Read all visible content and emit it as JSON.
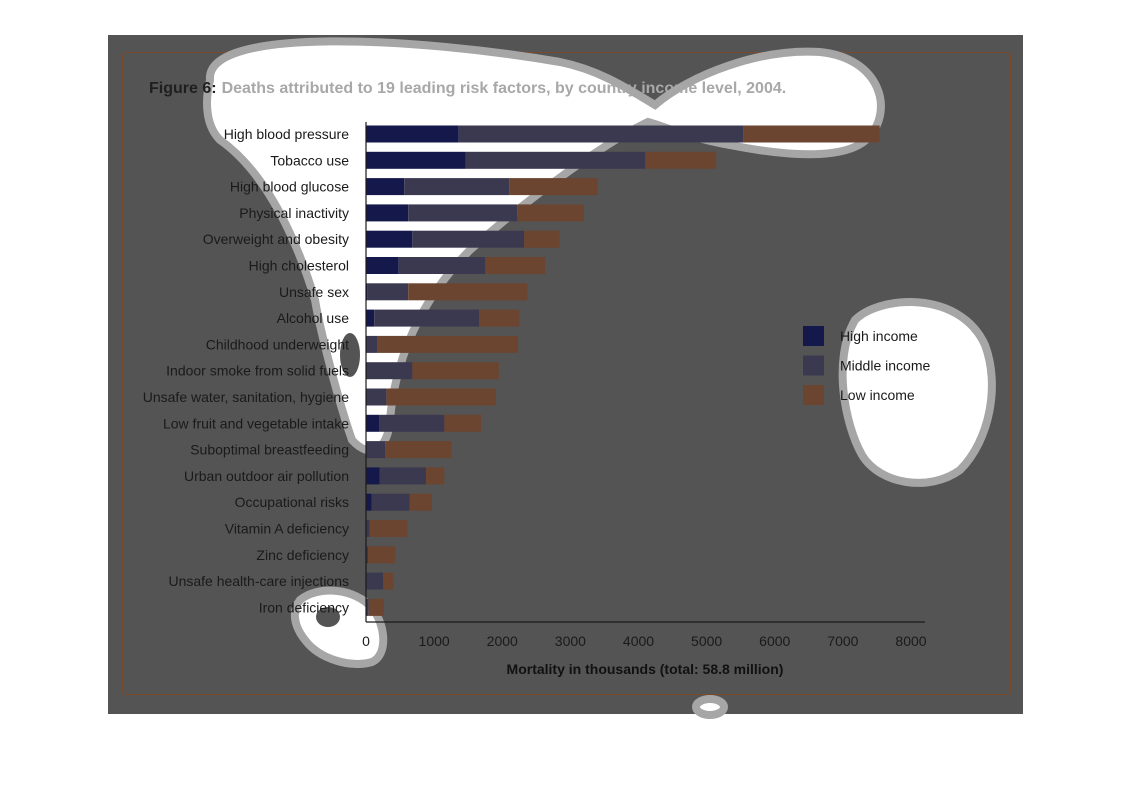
{
  "chart_data": {
    "type": "bar",
    "orientation": "horizontal",
    "stacked": true,
    "title_prefix": "Figure 6:",
    "title": "Deaths attributed to 19 leading risk factors, by country income level, 2004.",
    "xlabel": "Mortality in thousands (total: 58.8 million)",
    "ylabel": "",
    "xlim": [
      0,
      8000
    ],
    "xticks": [
      "0",
      "1000",
      "2000",
      "3000",
      "4000",
      "5000",
      "6000",
      "7000",
      "8000"
    ],
    "grid": false,
    "legend_position": "right",
    "categories": [
      "High blood pressure",
      "Tobacco use",
      "High blood glucose",
      "Physical inactivity",
      "Overweight and obesity",
      "High cholesterol",
      "Unsafe sex",
      "Alcohol use",
      "Childhood underweight",
      "Indoor smoke from solid fuels",
      "Unsafe water, sanitation, hygiene",
      "Low fruit and vegetable intake",
      "Suboptimal breastfeeding",
      "Urban outdoor air pollution",
      "Occupational risks",
      "Vitamin A deficiency",
      "Zinc deficiency",
      "Unsafe health-care injections",
      "Iron deficiency"
    ],
    "series": [
      {
        "name": "High income",
        "color": "#15184a",
        "values": [
          1360,
          1460,
          560,
          620,
          680,
          480,
          20,
          120,
          0,
          0,
          0,
          200,
          0,
          200,
          80,
          0,
          0,
          0,
          0
        ]
      },
      {
        "name": "Middle income",
        "color": "#3b3950",
        "values": [
          4180,
          2640,
          1540,
          1600,
          1640,
          1270,
          600,
          1540,
          170,
          680,
          300,
          950,
          280,
          680,
          560,
          50,
          30,
          250,
          40
        ]
      },
      {
        "name": "Low income",
        "color": "#6b4530",
        "values": [
          2000,
          1040,
          1300,
          980,
          520,
          880,
          1750,
          590,
          2060,
          1270,
          1610,
          540,
          970,
          270,
          330,
          560,
          400,
          150,
          220
        ]
      }
    ]
  }
}
